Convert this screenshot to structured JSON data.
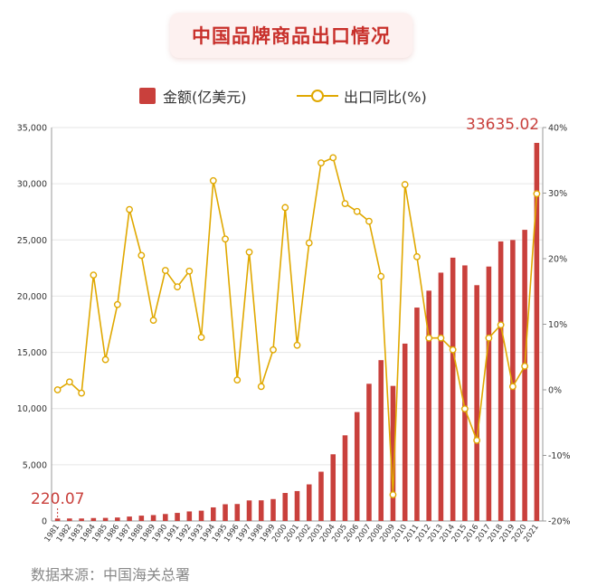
{
  "header": {
    "title": "中国品牌商品出口情况"
  },
  "legend": {
    "bar_label": "金额(亿美元)",
    "line_label": "出口同比(%)"
  },
  "source": "数据来源：中国海关总署",
  "colors": {
    "bar": "#c9403c",
    "line": "#e0a800",
    "title": "#c8302b",
    "grid": "#e6e6e6"
  },
  "chart_data": {
    "type": "bar",
    "categories": [
      "1981",
      "1982",
      "1983",
      "1984",
      "1985",
      "1986",
      "1987",
      "1988",
      "1989",
      "1990",
      "1991",
      "1992",
      "1993",
      "1994",
      "1995",
      "1996",
      "1997",
      "1998",
      "1999",
      "2000",
      "2001",
      "2002",
      "2003",
      "2004",
      "2005",
      "2006",
      "2007",
      "2008",
      "2009",
      "2010",
      "2011",
      "2012",
      "2013",
      "2014",
      "2015",
      "2016",
      "2017",
      "2018",
      "2019",
      "2020",
      "2021"
    ],
    "series": [
      {
        "name": "金额(亿美元)",
        "type": "bar",
        "axis": "left",
        "values": [
          220.07,
          223,
          222,
          261,
          274,
          309,
          394,
          475,
          525,
          621,
          719,
          849,
          917,
          1210,
          1488,
          1510,
          1828,
          1837,
          1949,
          2492,
          2661,
          3256,
          4382,
          5933,
          7620,
          9689,
          12205,
          14307,
          12016,
          15778,
          18984,
          20487,
          22090,
          23423,
          22735,
          20976,
          22633,
          24867,
          24995,
          25900,
          33635.02
        ]
      },
      {
        "name": "出口同比(%)",
        "type": "line",
        "axis": "right",
        "values": [
          0,
          1.2,
          -0.5,
          17.5,
          4.6,
          13,
          27.5,
          20.5,
          10.6,
          18.2,
          15.7,
          18.1,
          8,
          31.9,
          23,
          1.5,
          21,
          0.5,
          6.1,
          27.8,
          6.8,
          22.4,
          34.6,
          35.4,
          28.4,
          27.2,
          25.7,
          17.3,
          -16,
          31.3,
          20.3,
          7.9,
          7.9,
          6.1,
          -2.9,
          -7.7,
          7.9,
          9.9,
          0.5,
          3.6,
          29.9
        ]
      }
    ],
    "data_labels": {
      "first": "220.07",
      "last": "33635.02"
    },
    "ylim_left": [
      0,
      35000
    ],
    "ylim_right": [
      -20,
      40
    ],
    "yticks_left": [
      "0",
      "5,000",
      "10,000",
      "15,000",
      "20,000",
      "25,000",
      "30,000",
      "35,000"
    ],
    "yticks_right": [
      "-20%",
      "-10%",
      "0%",
      "10%",
      "20%",
      "30%",
      "40%"
    ],
    "grid": true,
    "legend_position": "top"
  }
}
